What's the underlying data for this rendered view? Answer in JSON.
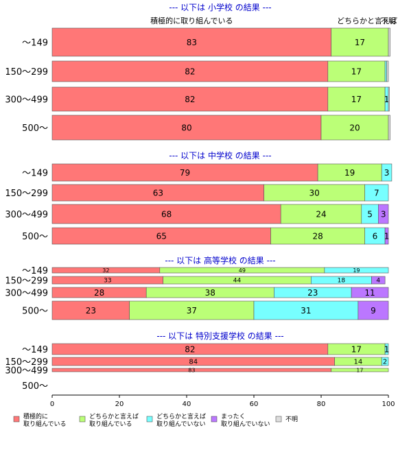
{
  "chart_data": {
    "type": "bar",
    "orientation": "horizontal",
    "stacked": true,
    "xlim": [
      0,
      100
    ],
    "x_ticks": [
      "0",
      "20",
      "40",
      "60",
      "80",
      "100"
    ],
    "top_labels": [
      "積極的に取り組んでいる",
      "どちらかと言えば",
      "不明"
    ],
    "legend": [
      {
        "key": "s1",
        "label": "積極的に\n取り組んでいる",
        "color": "#ff7777"
      },
      {
        "key": "s2",
        "label": "どちらかと言えば\n取り組んでいる",
        "color": "#bbff77"
      },
      {
        "key": "s3",
        "label": "どちらかと言えば\n取り組んでいない",
        "color": "#77ffff"
      },
      {
        "key": "s4",
        "label": "まったく\n取り組んでいない",
        "color": "#bb77ff"
      },
      {
        "key": "s5",
        "label": "不明",
        "color": "#dddddd"
      }
    ],
    "panels": [
      {
        "title": "--- 以下は 小学校 の結果 ---",
        "rows": [
          {
            "label": "～149",
            "values": [
              83,
              17,
              0,
              0,
              0.5
            ],
            "labels": [
              "83",
              "17",
              "",
              "",
              ""
            ]
          },
          {
            "label": "150～299",
            "values": [
              82,
              17,
              0.5,
              0,
              0.5
            ],
            "labels": [
              "82",
              "17",
              "",
              "",
              ""
            ]
          },
          {
            "label": "300～499",
            "values": [
              82,
              17,
              1,
              0,
              0.3
            ],
            "labels": [
              "82",
              "17",
              "1",
              "",
              ""
            ]
          },
          {
            "label": "500～",
            "values": [
              80,
              20,
              0,
              0,
              0.5
            ],
            "labels": [
              "80",
              "20",
              "",
              "",
              ""
            ]
          }
        ]
      },
      {
        "title": "--- 以下は 中学校 の結果 ---",
        "rows": [
          {
            "label": "～149",
            "values": [
              79,
              19,
              3,
              0,
              0
            ],
            "labels": [
              "79",
              "19",
              "3",
              "",
              ""
            ]
          },
          {
            "label": "150～299",
            "values": [
              63,
              30,
              7,
              0,
              0
            ],
            "labels": [
              "63",
              "30",
              "7",
              "",
              ""
            ]
          },
          {
            "label": "300～499",
            "values": [
              68,
              24,
              5,
              3,
              0
            ],
            "labels": [
              "68",
              "24",
              "5",
              "3",
              ""
            ]
          },
          {
            "label": "500～",
            "values": [
              65,
              28,
              6,
              1,
              0
            ],
            "labels": [
              "65",
              "28",
              "6",
              "1",
              ""
            ]
          }
        ]
      },
      {
        "title": "--- 以下は 高等学校 の結果 ---",
        "rows": [
          {
            "label": "～149",
            "values": [
              32,
              49,
              19,
              0,
              0
            ],
            "labels": [
              "32",
              "49",
              "19",
              "",
              ""
            ]
          },
          {
            "label": "150～299",
            "values": [
              33,
              44,
              18,
              4,
              0
            ],
            "labels": [
              "33",
              "44",
              "18",
              "4",
              ""
            ]
          },
          {
            "label": "300～499",
            "values": [
              28,
              38,
              23,
              11,
              0
            ],
            "labels": [
              "28",
              "38",
              "23",
              "11",
              ""
            ]
          },
          {
            "label": "500～",
            "values": [
              23,
              37,
              31,
              9,
              0
            ],
            "labels": [
              "23",
              "37",
              "31",
              "9",
              ""
            ]
          }
        ]
      },
      {
        "title": "--- 以下は 特別支援学校 の結果 ---",
        "rows": [
          {
            "label": "～149",
            "values": [
              82,
              17,
              1,
              0,
              0
            ],
            "labels": [
              "82",
              "17",
              "1",
              "",
              ""
            ]
          },
          {
            "label": "150～299",
            "values": [
              84,
              14,
              2,
              0,
              0
            ],
            "labels": [
              "84",
              "14",
              "2",
              "",
              ""
            ]
          },
          {
            "label": "300～499",
            "values": [
              83,
              17,
              0,
              0,
              0
            ],
            "labels": [
              "83",
              "17",
              "",
              "",
              ""
            ]
          },
          {
            "label": "500～",
            "values": [],
            "labels": []
          }
        ]
      }
    ]
  }
}
